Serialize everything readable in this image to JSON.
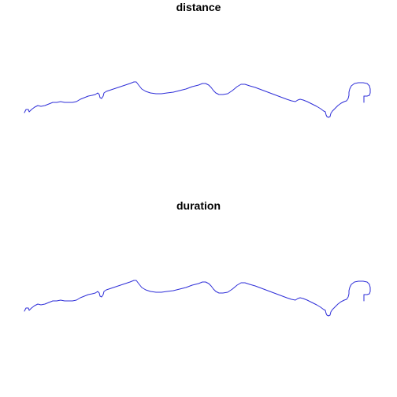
{
  "chart_data": [
    {
      "type": "line",
      "title": "distance",
      "axes": "none",
      "series_color": "#2e2ed8",
      "series": [
        {
          "points": [
            [
              31,
              143
            ],
            [
              33,
              139
            ],
            [
              36,
              139
            ],
            [
              37,
              142
            ],
            [
              40,
              139
            ],
            [
              44,
              136
            ],
            [
              48,
              134
            ],
            [
              52,
              135
            ],
            [
              57,
              134
            ],
            [
              62,
              132
            ],
            [
              67,
              130
            ],
            [
              72,
              130
            ],
            [
              77,
              129
            ],
            [
              82,
              130
            ],
            [
              87,
              130
            ],
            [
              92,
              130
            ],
            [
              97,
              129
            ],
            [
              102,
              126
            ],
            [
              107,
              124
            ],
            [
              112,
              122
            ],
            [
              117,
              121
            ],
            [
              121,
              120
            ],
            [
              124,
              118
            ],
            [
              126,
              120
            ],
            [
              127,
              124
            ],
            [
              129,
              125
            ],
            [
              131,
              122
            ],
            [
              132,
              118
            ],
            [
              135,
              116
            ],
            [
              141,
              114
            ],
            [
              147,
              112
            ],
            [
              153,
              110
            ],
            [
              159,
              108
            ],
            [
              165,
              106
            ],
            [
              170,
              104
            ],
            [
              173,
              104
            ],
            [
              176,
              108
            ],
            [
              180,
              113
            ],
            [
              185,
              116
            ],
            [
              191,
              118
            ],
            [
              198,
              119
            ],
            [
              205,
              119
            ],
            [
              212,
              118
            ],
            [
              220,
              117
            ],
            [
              228,
              115
            ],
            [
              236,
              113
            ],
            [
              244,
              110
            ],
            [
              252,
              108
            ],
            [
              257,
              106
            ],
            [
              261,
              106
            ],
            [
              265,
              108
            ],
            [
              268,
              111
            ],
            [
              271,
              115
            ],
            [
              274,
              118
            ],
            [
              278,
              120
            ],
            [
              283,
              120
            ],
            [
              289,
              119
            ],
            [
              295,
              115
            ],
            [
              301,
              110
            ],
            [
              306,
              107
            ],
            [
              311,
              107
            ],
            [
              317,
              109
            ],
            [
              324,
              111
            ],
            [
              332,
              114
            ],
            [
              340,
              117
            ],
            [
              348,
              120
            ],
            [
              356,
              123
            ],
            [
              364,
              126
            ],
            [
              370,
              128
            ],
            [
              375,
              129
            ],
            [
              378,
              127
            ],
            [
              381,
              126
            ],
            [
              385,
              127
            ],
            [
              390,
              129
            ],
            [
              396,
              132
            ],
            [
              402,
              135
            ],
            [
              407,
              138
            ],
            [
              411,
              141
            ],
            [
              413,
              142
            ],
            [
              414,
              146
            ],
            [
              415,
              148
            ],
            [
              417,
              149
            ],
            [
              419,
              148
            ],
            [
              420,
              144
            ],
            [
              422,
              141
            ],
            [
              425,
              138
            ],
            [
              429,
              134
            ],
            [
              433,
              131
            ],
            [
              437,
              129
            ],
            [
              440,
              128
            ],
            [
              442,
              125
            ],
            [
              443,
              121
            ],
            [
              443,
              117
            ],
            [
              444,
              113
            ],
            [
              446,
              109
            ],
            [
              450,
              106
            ],
            [
              455,
              105
            ],
            [
              461,
              105
            ],
            [
              466,
              106
            ],
            [
              469,
              109
            ],
            [
              470,
              113
            ],
            [
              470,
              118
            ],
            [
              469,
              121
            ],
            [
              466,
              122
            ],
            [
              462,
              122
            ]
          ]
        },
        {
          "points": [
            [
              462,
              122
            ],
            [
              462,
              130
            ]
          ]
        }
      ]
    },
    {
      "type": "line",
      "title": "duration",
      "axes": "none",
      "series_color": "#2e2ed8",
      "series": [
        {
          "points": [
            [
              31,
              143
            ],
            [
              33,
              139
            ],
            [
              36,
              139
            ],
            [
              37,
              142
            ],
            [
              40,
              139
            ],
            [
              44,
              136
            ],
            [
              48,
              134
            ],
            [
              52,
              135
            ],
            [
              57,
              134
            ],
            [
              62,
              132
            ],
            [
              67,
              130
            ],
            [
              72,
              130
            ],
            [
              77,
              129
            ],
            [
              82,
              130
            ],
            [
              87,
              130
            ],
            [
              92,
              130
            ],
            [
              97,
              129
            ],
            [
              102,
              126
            ],
            [
              107,
              124
            ],
            [
              112,
              122
            ],
            [
              117,
              121
            ],
            [
              121,
              120
            ],
            [
              124,
              118
            ],
            [
              126,
              120
            ],
            [
              127,
              124
            ],
            [
              129,
              125
            ],
            [
              131,
              122
            ],
            [
              132,
              118
            ],
            [
              135,
              116
            ],
            [
              141,
              114
            ],
            [
              147,
              112
            ],
            [
              153,
              110
            ],
            [
              159,
              108
            ],
            [
              165,
              106
            ],
            [
              170,
              104
            ],
            [
              173,
              104
            ],
            [
              176,
              108
            ],
            [
              180,
              113
            ],
            [
              185,
              116
            ],
            [
              191,
              118
            ],
            [
              198,
              119
            ],
            [
              205,
              119
            ],
            [
              212,
              118
            ],
            [
              220,
              117
            ],
            [
              228,
              115
            ],
            [
              236,
              113
            ],
            [
              244,
              110
            ],
            [
              252,
              108
            ],
            [
              257,
              106
            ],
            [
              261,
              106
            ],
            [
              265,
              108
            ],
            [
              268,
              111
            ],
            [
              271,
              115
            ],
            [
              274,
              118
            ],
            [
              278,
              120
            ],
            [
              283,
              120
            ],
            [
              289,
              119
            ],
            [
              295,
              115
            ],
            [
              301,
              110
            ],
            [
              306,
              107
            ],
            [
              311,
              107
            ],
            [
              317,
              109
            ],
            [
              324,
              111
            ],
            [
              332,
              114
            ],
            [
              340,
              117
            ],
            [
              348,
              120
            ],
            [
              356,
              123
            ],
            [
              364,
              126
            ],
            [
              370,
              128
            ],
            [
              375,
              129
            ],
            [
              378,
              127
            ],
            [
              381,
              126
            ],
            [
              385,
              127
            ],
            [
              390,
              129
            ],
            [
              396,
              132
            ],
            [
              402,
              135
            ],
            [
              407,
              138
            ],
            [
              411,
              141
            ],
            [
              413,
              142
            ],
            [
              414,
              146
            ],
            [
              415,
              148
            ],
            [
              417,
              149
            ],
            [
              419,
              148
            ],
            [
              420,
              144
            ],
            [
              422,
              141
            ],
            [
              425,
              138
            ],
            [
              429,
              134
            ],
            [
              433,
              131
            ],
            [
              437,
              129
            ],
            [
              440,
              128
            ],
            [
              442,
              125
            ],
            [
              443,
              121
            ],
            [
              443,
              117
            ],
            [
              444,
              113
            ],
            [
              446,
              109
            ],
            [
              450,
              106
            ],
            [
              455,
              105
            ],
            [
              461,
              105
            ],
            [
              466,
              106
            ],
            [
              469,
              109
            ],
            [
              470,
              113
            ],
            [
              470,
              118
            ],
            [
              469,
              121
            ],
            [
              466,
              122
            ],
            [
              462,
              122
            ]
          ]
        },
        {
          "points": [
            [
              462,
              122
            ],
            [
              462,
              130
            ]
          ]
        }
      ]
    }
  ]
}
